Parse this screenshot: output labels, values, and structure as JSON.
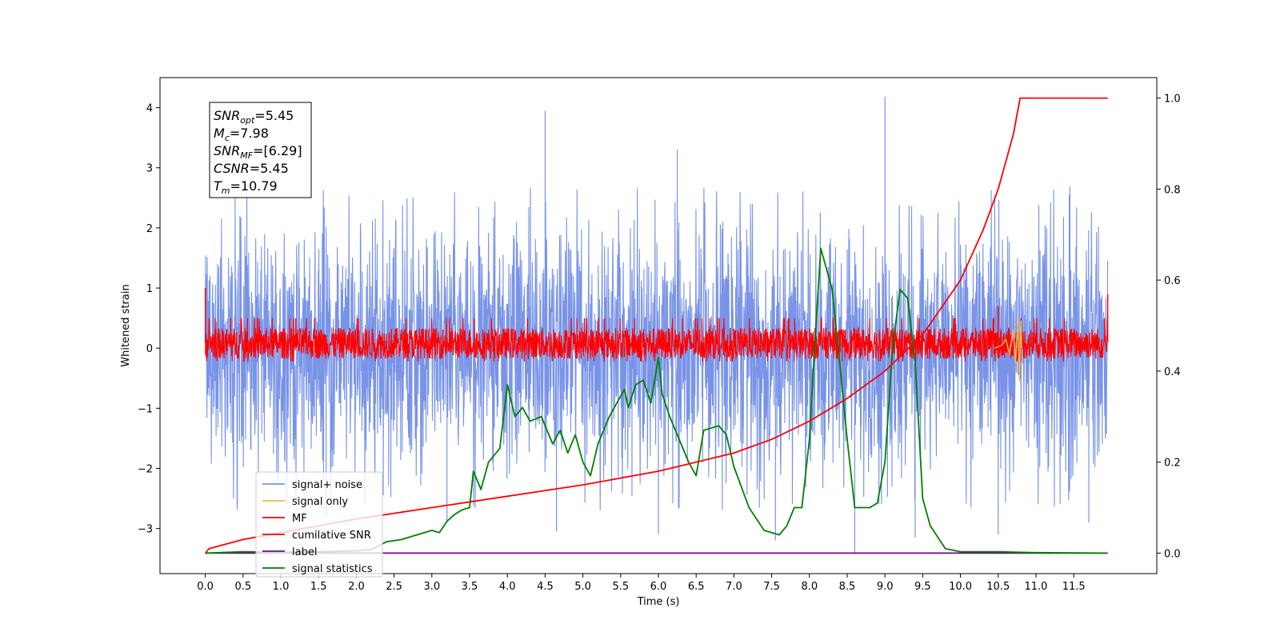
{
  "chart_data": {
    "type": "line",
    "xlabel": "Time (s)",
    "ylabel_left": "Whitened strain",
    "ylabel_right": "",
    "xlim": [
      -0.6,
      12.6
    ],
    "ylim_left": [
      -3.75,
      4.5
    ],
    "ylim_right": [
      -0.045,
      1.045
    ],
    "x_ticks": [
      0.0,
      0.5,
      1.0,
      1.5,
      2.0,
      2.5,
      3.0,
      3.5,
      4.0,
      4.5,
      5.0,
      5.5,
      6.0,
      6.5,
      7.0,
      7.5,
      8.0,
      8.5,
      9.0,
      9.5,
      10.0,
      10.5,
      11.0,
      11.5
    ],
    "x_tick_labels": [
      "0.0",
      "0.5",
      "1.0",
      "1.5",
      "2.0",
      "2.5",
      "3.0",
      "3.5",
      "4.0",
      "4.5",
      "5.0",
      "5.5",
      "6.0",
      "6.5",
      "7.0",
      "7.5",
      "8.0",
      "8.5",
      "9.0",
      "9.5",
      "10.0",
      "10.5",
      "11.0",
      "11.5"
    ],
    "y_ticks_left": [
      -3,
      -2,
      -1,
      0,
      1,
      2,
      3,
      4
    ],
    "y_tick_labels_left": [
      "−3",
      "−2",
      "−1",
      "0",
      "1",
      "2",
      "3",
      "4"
    ],
    "y_ticks_right": [
      0.0,
      0.2,
      0.4,
      0.6,
      0.8,
      1.0
    ],
    "y_tick_labels_right": [
      "0.0",
      "0.2",
      "0.4",
      "0.6",
      "0.8",
      "1.0"
    ],
    "grid": false,
    "legend_placement": "lower-left",
    "annotation": [
      {
        "base": "SNR",
        "sub": "opt",
        "value": "=5.45"
      },
      {
        "base": "M",
        "sub": "c",
        "value": "=7.98"
      },
      {
        "base": "SNR",
        "sub": "MF",
        "value": "=[6.29]"
      },
      {
        "base": "CSNR",
        "sub": "",
        "value": "=5.45"
      },
      {
        "base": "T",
        "sub": "m",
        "value": "=10.79"
      }
    ],
    "series": [
      {
        "name": "signal+ noise",
        "color": "#7893e8",
        "axis": "left",
        "style": "noise band, roughly ±2 whitened strain",
        "spikes": [
          [
            0.55,
            3.2
          ],
          [
            1.6,
            -2.8
          ],
          [
            3.2,
            -2.9
          ],
          [
            4.5,
            3.95
          ],
          [
            4.65,
            -3.05
          ],
          [
            5.65,
            -2.45
          ],
          [
            6.0,
            -3.1
          ],
          [
            6.25,
            3.3
          ],
          [
            7.55,
            -3.2
          ],
          [
            8.6,
            -3.42
          ],
          [
            9.0,
            4.18
          ],
          [
            9.4,
            -3.15
          ],
          [
            10.5,
            -3.1
          ],
          [
            11.7,
            -2.9
          ]
        ]
      },
      {
        "name": "signal only",
        "color": "#e8b94f",
        "axis": "left",
        "points": [
          [
            10.45,
            0.0
          ],
          [
            10.55,
            0.05
          ],
          [
            10.6,
            0.15
          ],
          [
            10.65,
            -0.1
          ],
          [
            10.7,
            0.3
          ],
          [
            10.73,
            -0.25
          ],
          [
            10.76,
            0.5
          ],
          [
            10.78,
            -0.55
          ],
          [
            10.8,
            0.45
          ],
          [
            10.81,
            0.0
          ]
        ]
      },
      {
        "name": "MF",
        "color": "#ff0000",
        "axis": "left",
        "style": "band roughly -0.25 to 0.45 whitened strain",
        "spikes": [
          [
            0.0,
            1.0
          ],
          [
            10.5,
            0.7
          ],
          [
            11.95,
            0.9
          ]
        ]
      },
      {
        "name": "cumilative SNR",
        "color": "#ff0000",
        "axis": "right",
        "points": [
          [
            0.0,
            0.0
          ],
          [
            0.05,
            0.01
          ],
          [
            0.5,
            0.03
          ],
          [
            1.0,
            0.045
          ],
          [
            2.0,
            0.075
          ],
          [
            3.0,
            0.1
          ],
          [
            4.0,
            0.125
          ],
          [
            5.0,
            0.15
          ],
          [
            6.0,
            0.18
          ],
          [
            7.0,
            0.22
          ],
          [
            7.5,
            0.25
          ],
          [
            8.0,
            0.29
          ],
          [
            8.5,
            0.34
          ],
          [
            9.0,
            0.4
          ],
          [
            9.5,
            0.48
          ],
          [
            10.0,
            0.6
          ],
          [
            10.3,
            0.71
          ],
          [
            10.5,
            0.8
          ],
          [
            10.6,
            0.86
          ],
          [
            10.7,
            0.92
          ],
          [
            10.79,
            1.0
          ],
          [
            11.95,
            1.0
          ]
        ]
      },
      {
        "name": "label",
        "color": "#6a0d75",
        "axis": "right",
        "points": [
          [
            0.0,
            0.0
          ],
          [
            11.95,
            0.0
          ]
        ]
      },
      {
        "name": "signal statistics",
        "color": "#008000",
        "axis": "right",
        "points": [
          [
            0.0,
            0.0
          ],
          [
            0.5,
            0.003
          ],
          [
            1.0,
            0.002
          ],
          [
            1.5,
            0.003
          ],
          [
            2.0,
            0.005
          ],
          [
            2.2,
            0.008
          ],
          [
            2.4,
            0.025
          ],
          [
            2.6,
            0.03
          ],
          [
            2.8,
            0.04
          ],
          [
            3.0,
            0.05
          ],
          [
            3.1,
            0.045
          ],
          [
            3.2,
            0.07
          ],
          [
            3.3,
            0.085
          ],
          [
            3.4,
            0.095
          ],
          [
            3.5,
            0.1
          ],
          [
            3.55,
            0.18
          ],
          [
            3.65,
            0.14
          ],
          [
            3.75,
            0.2
          ],
          [
            3.9,
            0.23
          ],
          [
            4.0,
            0.37
          ],
          [
            4.1,
            0.3
          ],
          [
            4.2,
            0.32
          ],
          [
            4.3,
            0.29
          ],
          [
            4.45,
            0.3
          ],
          [
            4.6,
            0.24
          ],
          [
            4.7,
            0.27
          ],
          [
            4.8,
            0.22
          ],
          [
            4.9,
            0.26
          ],
          [
            5.0,
            0.2
          ],
          [
            5.1,
            0.17
          ],
          [
            5.2,
            0.24
          ],
          [
            5.35,
            0.3
          ],
          [
            5.45,
            0.33
          ],
          [
            5.55,
            0.36
          ],
          [
            5.6,
            0.32
          ],
          [
            5.7,
            0.37
          ],
          [
            5.8,
            0.38
          ],
          [
            5.9,
            0.33
          ],
          [
            6.0,
            0.43
          ],
          [
            6.05,
            0.35
          ],
          [
            6.15,
            0.3
          ],
          [
            6.25,
            0.26
          ],
          [
            6.4,
            0.2
          ],
          [
            6.5,
            0.17
          ],
          [
            6.6,
            0.27
          ],
          [
            6.8,
            0.28
          ],
          [
            6.9,
            0.26
          ],
          [
            7.0,
            0.19
          ],
          [
            7.2,
            0.1
          ],
          [
            7.4,
            0.05
          ],
          [
            7.6,
            0.04
          ],
          [
            7.7,
            0.06
          ],
          [
            7.8,
            0.1
          ],
          [
            7.9,
            0.1
          ],
          [
            8.0,
            0.25
          ],
          [
            8.05,
            0.4
          ],
          [
            8.15,
            0.67
          ],
          [
            8.3,
            0.58
          ],
          [
            8.4,
            0.42
          ],
          [
            8.5,
            0.25
          ],
          [
            8.6,
            0.1
          ],
          [
            8.8,
            0.1
          ],
          [
            8.9,
            0.11
          ],
          [
            9.0,
            0.2
          ],
          [
            9.1,
            0.45
          ],
          [
            9.2,
            0.58
          ],
          [
            9.3,
            0.56
          ],
          [
            9.4,
            0.42
          ],
          [
            9.5,
            0.12
          ],
          [
            9.6,
            0.06
          ],
          [
            9.8,
            0.01
          ],
          [
            10.0,
            0.003
          ],
          [
            10.5,
            0.003
          ],
          [
            11.0,
            0.001
          ],
          [
            11.95,
            0.0
          ]
        ]
      }
    ]
  }
}
